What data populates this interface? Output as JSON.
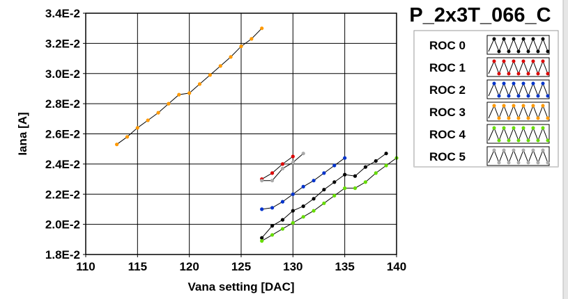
{
  "chart_data": {
    "type": "line",
    "title": "P_2x3T_066_C",
    "xlabel": "Vana setting [DAC]",
    "ylabel": "Iana [A]",
    "xlim": [
      110,
      140
    ],
    "ylim": [
      0.018,
      0.034
    ],
    "x_ticks": [
      110,
      115,
      120,
      125,
      130,
      135,
      140
    ],
    "x_tick_labels": [
      "110",
      "115",
      "120",
      "125",
      "130",
      "135",
      "140"
    ],
    "y_ticks": [
      0.018,
      0.02,
      0.022,
      0.024,
      0.026,
      0.028,
      0.03,
      0.032,
      0.034
    ],
    "y_tick_labels": [
      "1.8E-2",
      "2.0E-2",
      "2.2E-2",
      "2.4E-2",
      "2.6E-2",
      "2.8E-2",
      "3.0E-2",
      "3.2E-2",
      "3.4E-2"
    ],
    "grid": true,
    "legend_position": "right",
    "series": [
      {
        "name": "ROC 0",
        "color": "#000000",
        "x": [
          127,
          128,
          129,
          130,
          131,
          132,
          133,
          134,
          135,
          136,
          137,
          138,
          139
        ],
        "y": [
          0.0191,
          0.0199,
          0.0203,
          0.0209,
          0.0212,
          0.0217,
          0.0223,
          0.0228,
          0.0233,
          0.0232,
          0.0238,
          0.0242,
          0.0247
        ]
      },
      {
        "name": "ROC 1",
        "color": "#dd0000",
        "x": [
          127,
          128,
          129,
          130
        ],
        "y": [
          0.023,
          0.0234,
          0.024,
          0.0245
        ]
      },
      {
        "name": "ROC 2",
        "color": "#0033cc",
        "x": [
          127,
          128,
          129,
          130,
          131,
          132,
          133,
          134,
          135
        ],
        "y": [
          0.021,
          0.0211,
          0.0215,
          0.022,
          0.0225,
          0.0229,
          0.0234,
          0.0239,
          0.0244
        ]
      },
      {
        "name": "ROC 3",
        "color": "#ff9900",
        "x": [
          113,
          114,
          115,
          116,
          117,
          118,
          119,
          120,
          121,
          122,
          123,
          124,
          125,
          126,
          127
        ],
        "y": [
          0.0253,
          0.0258,
          0.0264,
          0.0269,
          0.0274,
          0.028,
          0.0286,
          0.0287,
          0.0293,
          0.0299,
          0.0305,
          0.0311,
          0.0318,
          0.0323,
          0.033
        ]
      },
      {
        "name": "ROC 4",
        "color": "#66dd00",
        "x": [
          127,
          128,
          129,
          130,
          131,
          132,
          133,
          134,
          135,
          136,
          137,
          138,
          139,
          140
        ],
        "y": [
          0.0189,
          0.0193,
          0.0197,
          0.0201,
          0.0205,
          0.0209,
          0.0214,
          0.0219,
          0.0224,
          0.0224,
          0.0228,
          0.0234,
          0.0239,
          0.0244
        ]
      },
      {
        "name": "ROC 5",
        "color": "#aaaaaa",
        "x": [
          127,
          128,
          129,
          130,
          131
        ],
        "y": [
          0.0229,
          0.0229,
          0.0237,
          0.0241,
          0.0247
        ]
      }
    ]
  }
}
